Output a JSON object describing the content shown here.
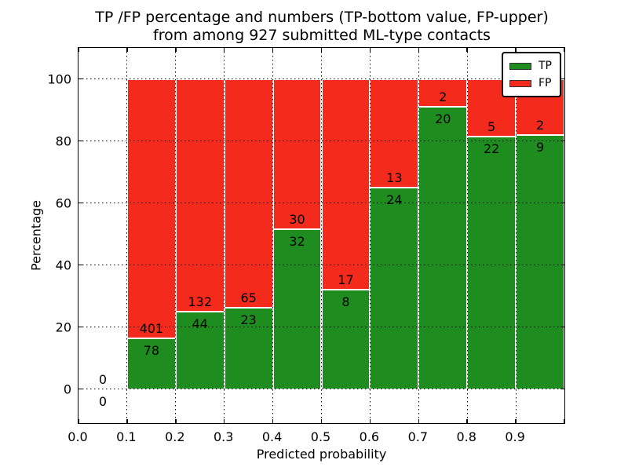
{
  "figure": {
    "title_lines": [
      "TP /FP percentage and numbers (TP-bottom value, FP-upper)",
      "from among 927 submitted ML-type contacts"
    ]
  },
  "chart_data": {
    "type": "bar",
    "stacked": true,
    "normalized": "each bar totals 100%",
    "title": "TP /FP percentage and numbers (TP-bottom value, FP-upper) from among 927 submitted ML-type contacts",
    "xlabel": "Predicted probability",
    "ylabel": "Percentage",
    "xlim": [
      0.0,
      1.0
    ],
    "ylim": [
      -11,
      110
    ],
    "x_tick_labels": [
      "0.0",
      "0.1",
      "0.2",
      "0.3",
      "0.4",
      "0.5",
      "0.6",
      "0.7",
      "0.8",
      "0.9"
    ],
    "y_tick_values": [
      0,
      20,
      40,
      60,
      80,
      100
    ],
    "x_grid_values": [
      0.1,
      0.2,
      0.3,
      0.4,
      0.5,
      0.6,
      0.7,
      0.8,
      0.9
    ],
    "x_tick_mark_values": [
      0.0,
      0.1,
      0.2,
      0.3,
      0.4,
      0.5,
      0.6,
      0.7,
      0.8,
      0.9,
      1.0
    ],
    "grid": "dotted black, drawn above bars",
    "legend_position": "upper right",
    "series": [
      {
        "name": "TP",
        "color": "#1f8c1f",
        "position": "bottom"
      },
      {
        "name": "FP",
        "color": "#f42a1c",
        "position": "top"
      }
    ],
    "bar_edge_color": "#ffffff",
    "total_contacts": 927,
    "bins": [
      {
        "x_start": 0.0,
        "x_end": 0.1,
        "tp": 0,
        "fp": 0,
        "tp_percent": 0
      },
      {
        "x_start": 0.1,
        "x_end": 0.2,
        "tp": 78,
        "fp": 401,
        "tp_percent": 16.3
      },
      {
        "x_start": 0.2,
        "x_end": 0.3,
        "tp": 44,
        "fp": 132,
        "tp_percent": 25.0
      },
      {
        "x_start": 0.3,
        "x_end": 0.4,
        "tp": 23,
        "fp": 65,
        "tp_percent": 26.1
      },
      {
        "x_start": 0.4,
        "x_end": 0.5,
        "tp": 32,
        "fp": 30,
        "tp_percent": 51.6
      },
      {
        "x_start": 0.5,
        "x_end": 0.6,
        "tp": 8,
        "fp": 17,
        "tp_percent": 32.0
      },
      {
        "x_start": 0.6,
        "x_end": 0.7,
        "tp": 24,
        "fp": 13,
        "tp_percent": 64.9
      },
      {
        "x_start": 0.7,
        "x_end": 0.8,
        "tp": 20,
        "fp": 2,
        "tp_percent": 90.9
      },
      {
        "x_start": 0.8,
        "x_end": 0.9,
        "tp": 22,
        "fp": 5,
        "tp_percent": 81.5
      },
      {
        "x_start": 0.9,
        "x_end": 1.0,
        "tp": 9,
        "fp": 2,
        "tp_percent": 81.8
      }
    ]
  }
}
